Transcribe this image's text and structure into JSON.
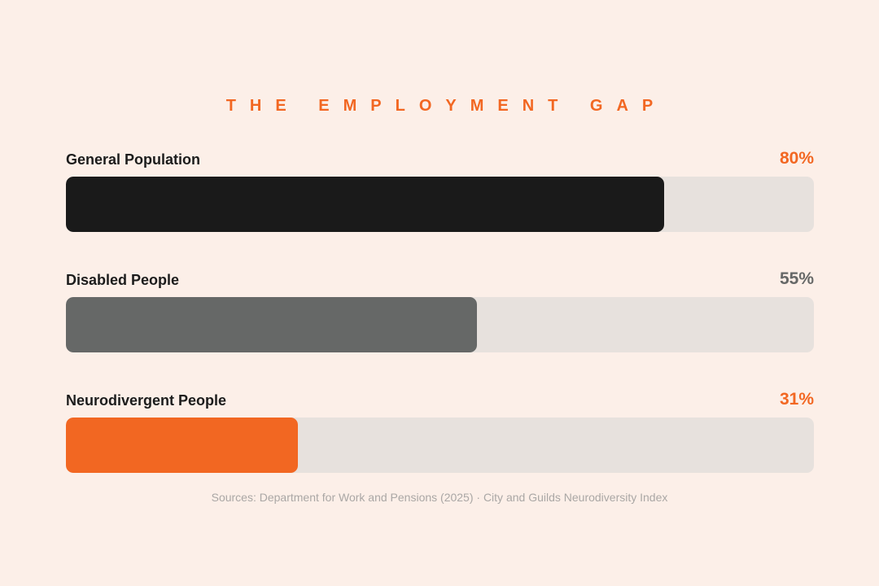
{
  "title": "THE EMPLOYMENT GAP",
  "chart_data": {
    "type": "bar",
    "orientation": "horizontal",
    "categories": [
      "General Population",
      "Disabled People",
      "Neurodivergent People"
    ],
    "values": [
      80,
      55,
      31
    ],
    "value_labels": [
      "80%",
      "55%",
      "31%"
    ],
    "xlim": [
      0,
      100
    ],
    "bar_colors": [
      "#1a1a1a",
      "#666867",
      "#f26722"
    ],
    "value_label_colors": [
      "#f26722",
      "#666867",
      "#f26722"
    ],
    "track_color": "#e7e1dd",
    "title": "THE EMPLOYMENT GAP",
    "grid": false
  },
  "footer": {
    "sources": "Sources: Department for Work and Pensions (2025) · City and Guilds Neurodiversity Index"
  },
  "colors": {
    "background": "#fcefe8",
    "accent": "#f26722",
    "text": "#1c1c1c",
    "muted": "#aaa7a5"
  }
}
